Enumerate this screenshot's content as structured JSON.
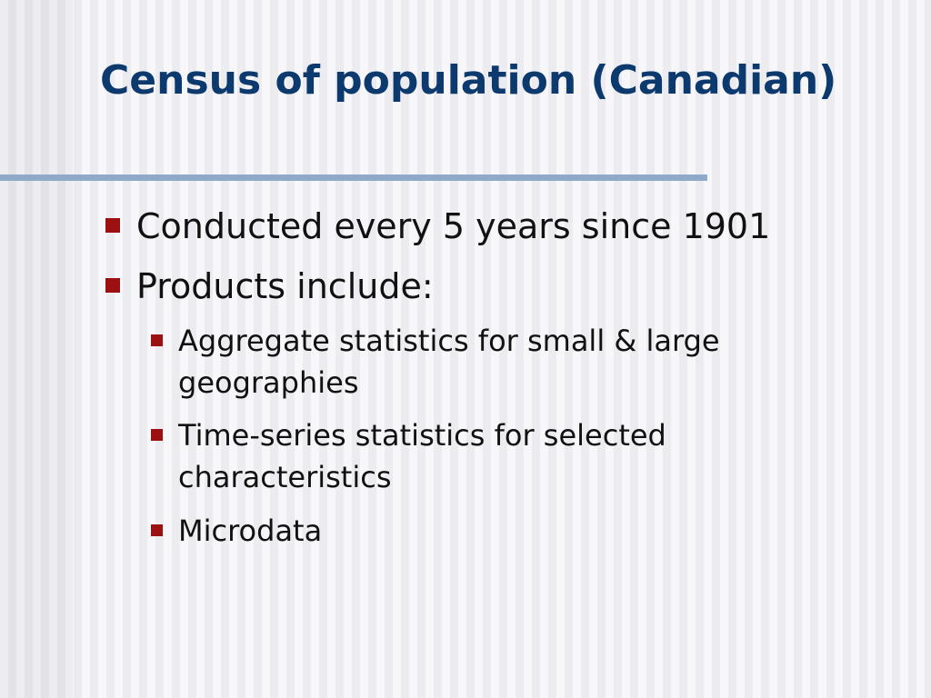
{
  "slide": {
    "title": "Census of population (Canadian)",
    "accent_color": "#0d3a6e",
    "bullet_color": "#9b1111",
    "bullets": [
      {
        "text": "Conducted every 5 years since 1901",
        "level": 1
      },
      {
        "text": "Products include:",
        "level": 1
      },
      {
        "text": "Aggregate statistics for small & large geographies",
        "level": 2
      },
      {
        "text": "Time-series statistics for selected characteristics",
        "level": 2
      },
      {
        "text": "Microdata",
        "level": 2
      }
    ]
  }
}
